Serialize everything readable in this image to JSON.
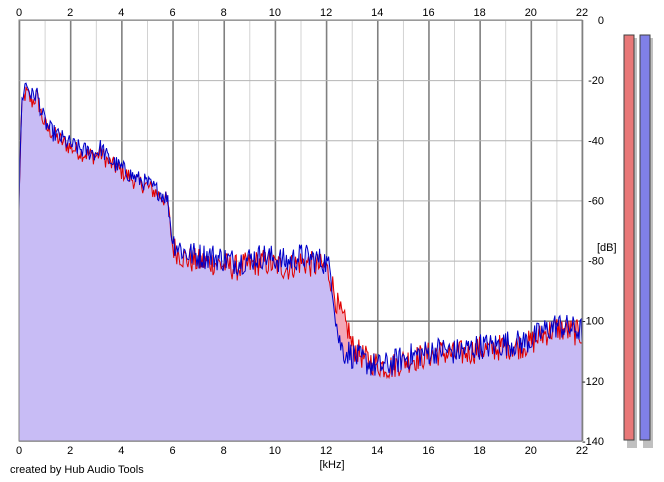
{
  "credit": "created by Hub Audio Tools",
  "colors": {
    "left_channel": "#e00000",
    "right_channel": "#0000c8",
    "fill_left": "#f4a8b8",
    "fill_right": "#c0c0ff",
    "grid_major": "#808080",
    "grid_minor": "#c8c8c8",
    "meter_left": "#e87878",
    "meter_right": "#8080e8"
  },
  "chart_data": {
    "type": "area",
    "title": "",
    "xlabel": "[kHz]",
    "ylabel": "[dB]",
    "xlim": [
      0,
      22
    ],
    "ylim": [
      -140,
      0
    ],
    "x_ticks": [
      0,
      2,
      4,
      6,
      8,
      10,
      12,
      14,
      16,
      18,
      20,
      22
    ],
    "x_tick_labels": [
      "0",
      "2",
      "4",
      "6",
      "8",
      "10",
      "12",
      "14",
      "16",
      "18",
      "20",
      "22"
    ],
    "y_ticks": [
      0,
      -20,
      -40,
      -60,
      -80,
      -100,
      -120,
      -140
    ],
    "y_tick_labels": [
      "0",
      "-20",
      "-40",
      "-60",
      "-80",
      "-100",
      "-120",
      "-140"
    ],
    "grid": true,
    "legend": "none",
    "series": [
      {
        "x": [
          0,
          0.1,
          0.2,
          0.3,
          0.5,
          0.7,
          0.9,
          1.1,
          1.3,
          1.5,
          2.0,
          2.5,
          3.0,
          3.2,
          3.5,
          4.0,
          4.5,
          5.0,
          5.5,
          5.8,
          6.0,
          6.5,
          7.0,
          7.5,
          8.0,
          8.5,
          9.0,
          9.5,
          10.0,
          10.5,
          11.0,
          11.5,
          12.0,
          12.2,
          12.4,
          12.5,
          12.7,
          12.9,
          13.0,
          13.5,
          14.0,
          14.5,
          15.0,
          15.5,
          16.0,
          16.5,
          17.0,
          17.5,
          18.0,
          18.5,
          19.0,
          19.5,
          20.0,
          20.5,
          21.0,
          21.5,
          22.0
        ],
        "values": [
          -60,
          -30,
          -25,
          -24,
          -27,
          -25,
          -32,
          -36,
          -37,
          -39,
          -42,
          -44,
          -45,
          -44,
          -47,
          -50,
          -53,
          -55,
          -58,
          -60,
          -75,
          -79,
          -80,
          -80,
          -81,
          -82,
          -81,
          -80,
          -81,
          -82,
          -80,
          -81,
          -82,
          -86,
          -93,
          -96,
          -100,
          -103,
          -108,
          -112,
          -114,
          -115,
          -113,
          -112,
          -111,
          -110,
          -111,
          -110,
          -109,
          -109,
          -108,
          -108,
          -107,
          -104,
          -102,
          -103,
          -104
        ]
      },
      {
        "x": [
          0,
          0.1,
          0.2,
          0.3,
          0.5,
          0.7,
          0.9,
          1.1,
          1.3,
          1.5,
          2.0,
          2.5,
          3.0,
          3.2,
          3.5,
          4.0,
          4.5,
          5.0,
          5.5,
          5.8,
          6.0,
          6.5,
          7.0,
          7.5,
          8.0,
          8.5,
          9.0,
          9.5,
          10.0,
          10.5,
          11.0,
          11.5,
          12.0,
          12.2,
          12.4,
          12.5,
          12.7,
          12.9,
          13.0,
          13.5,
          14.0,
          14.5,
          15.0,
          15.5,
          16.0,
          16.5,
          17.0,
          17.5,
          18.0,
          18.5,
          19.0,
          19.5,
          20.0,
          20.5,
          21.0,
          21.5,
          22.0
        ],
        "values": [
          -62,
          -28,
          -22,
          -21,
          -25,
          -24,
          -31,
          -35,
          -37,
          -38,
          -41,
          -43,
          -44,
          -42,
          -46,
          -49,
          -52,
          -54,
          -57,
          -59,
          -73,
          -77,
          -78,
          -78,
          -79,
          -80,
          -79,
          -78,
          -79,
          -80,
          -78,
          -79,
          -80,
          -84,
          -100,
          -106,
          -110,
          -110,
          -111,
          -113,
          -115,
          -114,
          -112,
          -111,
          -110,
          -109,
          -110,
          -109,
          -108,
          -108,
          -107,
          -107,
          -106,
          -103,
          -101,
          -102,
          -103
        ]
      }
    ]
  }
}
